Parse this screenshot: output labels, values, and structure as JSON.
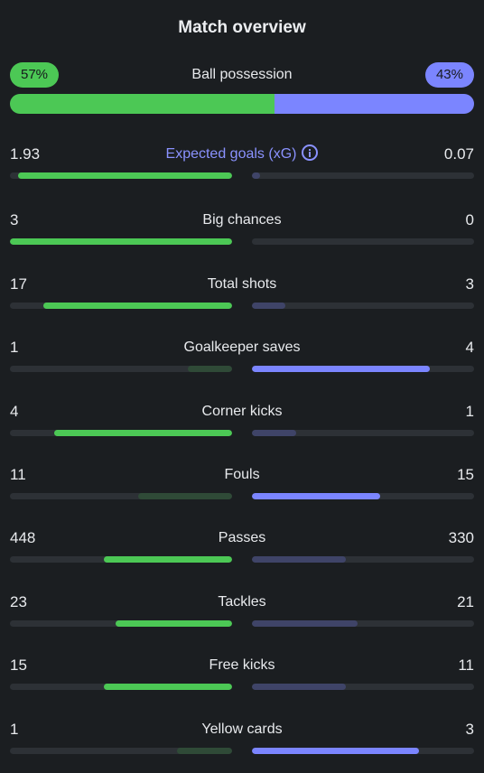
{
  "title": "Match overview",
  "colors": {
    "home": "#4cc855",
    "away": "#7b85ff",
    "home_muted": "#2f4a37",
    "away_muted": "#3f4468",
    "track": "#2d3136",
    "background": "#1b1e21"
  },
  "possession": {
    "label": "Ball possession",
    "home_text": "57%",
    "away_text": "43%",
    "home": 57,
    "away": 43
  },
  "stats": [
    {
      "key": "expected-goals",
      "label": "Expected goals (xG)",
      "home_text": "1.93",
      "away_text": "0.07",
      "home": 1.93,
      "away": 0.07,
      "accent": true,
      "info_icon": "info-icon"
    },
    {
      "key": "big-chances",
      "label": "Big chances",
      "home_text": "3",
      "away_text": "0",
      "home": 3,
      "away": 0
    },
    {
      "key": "total-shots",
      "label": "Total shots",
      "home_text": "17",
      "away_text": "3",
      "home": 17,
      "away": 3
    },
    {
      "key": "goalkeeper-saves",
      "label": "Goalkeeper saves",
      "home_text": "1",
      "away_text": "4",
      "home": 1,
      "away": 4
    },
    {
      "key": "corner-kicks",
      "label": "Corner kicks",
      "home_text": "4",
      "away_text": "1",
      "home": 4,
      "away": 1
    },
    {
      "key": "fouls",
      "label": "Fouls",
      "home_text": "11",
      "away_text": "15",
      "home": 11,
      "away": 15
    },
    {
      "key": "passes",
      "label": "Passes",
      "home_text": "448",
      "away_text": "330",
      "home": 448,
      "away": 330
    },
    {
      "key": "tackles",
      "label": "Tackles",
      "home_text": "23",
      "away_text": "21",
      "home": 23,
      "away": 21
    },
    {
      "key": "free-kicks",
      "label": "Free kicks",
      "home_text": "15",
      "away_text": "11",
      "home": 15,
      "away": 11
    },
    {
      "key": "yellow-cards",
      "label": "Yellow cards",
      "home_text": "1",
      "away_text": "3",
      "home": 1,
      "away": 3
    }
  ]
}
